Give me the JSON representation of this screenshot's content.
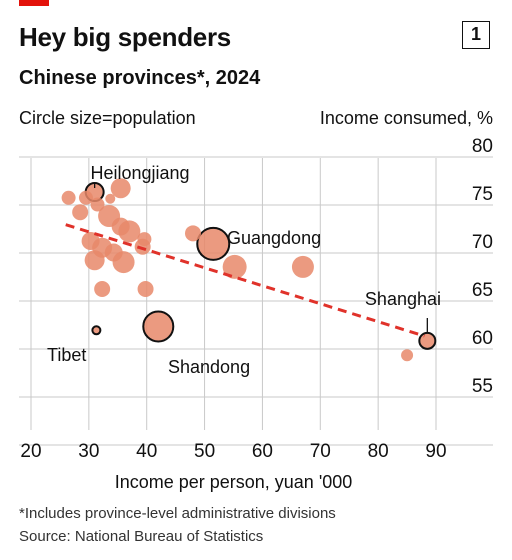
{
  "header": {
    "chart_number": "1",
    "title": "Hey big spenders",
    "subtitle": "Chinese provinces*, 2024",
    "size_note": "Circle size=population"
  },
  "footer": {
    "footnote": "*Includes province-level administrative divisions",
    "source": "Source: National Bureau of Statistics"
  },
  "colors": {
    "accent": "#e3120b",
    "bubble": "#e8886a",
    "trendline": "#e0322a",
    "grid": "#c9c9c9"
  },
  "chart_data": {
    "type": "scatter",
    "title": "Hey big spenders",
    "subtitle": "Chinese provinces*, 2024",
    "xlabel": "Income per person, yuan '000",
    "ylabel": "Income consumed, %",
    "xlim": [
      20,
      90
    ],
    "ylim": [
      50,
      80
    ],
    "xticks": [
      20,
      30,
      40,
      50,
      60,
      70,
      80,
      90
    ],
    "yticks": [
      55,
      60,
      65,
      70,
      75,
      80
    ],
    "grid": true,
    "size_encoding": "population",
    "trendline": {
      "x": [
        26,
        88
      ],
      "y": [
        71.7,
        60.1
      ]
    },
    "points": [
      {
        "label": "Heilongjiang",
        "x": 31,
        "y": 75.1,
        "r": 9,
        "highlight": true
      },
      {
        "label": "Guangdong",
        "x": 51.5,
        "y": 69.7,
        "r": 16,
        "highlight": true
      },
      {
        "label": "Shanghai",
        "x": 88.5,
        "y": 59.6,
        "r": 8,
        "highlight": true
      },
      {
        "label": "Shandong",
        "x": 42,
        "y": 61.1,
        "r": 15,
        "highlight": true
      },
      {
        "label": "Tibet",
        "x": 31.3,
        "y": 60.7,
        "r": 4,
        "highlight": true
      },
      {
        "label": "",
        "x": 26.5,
        "y": 74.5,
        "r": 7
      },
      {
        "label": "",
        "x": 28.5,
        "y": 73,
        "r": 8
      },
      {
        "label": "",
        "x": 29.5,
        "y": 74.5,
        "r": 7
      },
      {
        "label": "",
        "x": 31.5,
        "y": 73.8,
        "r": 7
      },
      {
        "label": "",
        "x": 33.7,
        "y": 74.4,
        "r": 5
      },
      {
        "label": "",
        "x": 35.5,
        "y": 75.5,
        "r": 10
      },
      {
        "label": "",
        "x": 33.5,
        "y": 72.6,
        "r": 11
      },
      {
        "label": "",
        "x": 35.5,
        "y": 71.5,
        "r": 9
      },
      {
        "label": "",
        "x": 37,
        "y": 71,
        "r": 11
      },
      {
        "label": "",
        "x": 30.3,
        "y": 70,
        "r": 9
      },
      {
        "label": "",
        "x": 32.3,
        "y": 69.3,
        "r": 10
      },
      {
        "label": "",
        "x": 34.3,
        "y": 68.8,
        "r": 9
      },
      {
        "label": "",
        "x": 31,
        "y": 68,
        "r": 10
      },
      {
        "label": "",
        "x": 36,
        "y": 67.8,
        "r": 11
      },
      {
        "label": "",
        "x": 39.6,
        "y": 70.2,
        "r": 7
      },
      {
        "label": "",
        "x": 39.3,
        "y": 69.4,
        "r": 8
      },
      {
        "label": "",
        "x": 32.3,
        "y": 65,
        "r": 8
      },
      {
        "label": "",
        "x": 39.8,
        "y": 65,
        "r": 8
      },
      {
        "label": "",
        "x": 48,
        "y": 70.8,
        "r": 8
      },
      {
        "label": "",
        "x": 55.2,
        "y": 67.3,
        "r": 12
      },
      {
        "label": "",
        "x": 67,
        "y": 67.3,
        "r": 11
      },
      {
        "label": "",
        "x": 85,
        "y": 58.1,
        "r": 6
      }
    ],
    "annotations": [
      {
        "text": "Heilongjiang",
        "anchor": "above"
      },
      {
        "text": "Guangdong",
        "anchor": "upper-right"
      },
      {
        "text": "Shanghai",
        "anchor": "above-left"
      },
      {
        "text": "Shandong",
        "anchor": "below-right"
      },
      {
        "text": "Tibet",
        "anchor": "left"
      }
    ]
  }
}
